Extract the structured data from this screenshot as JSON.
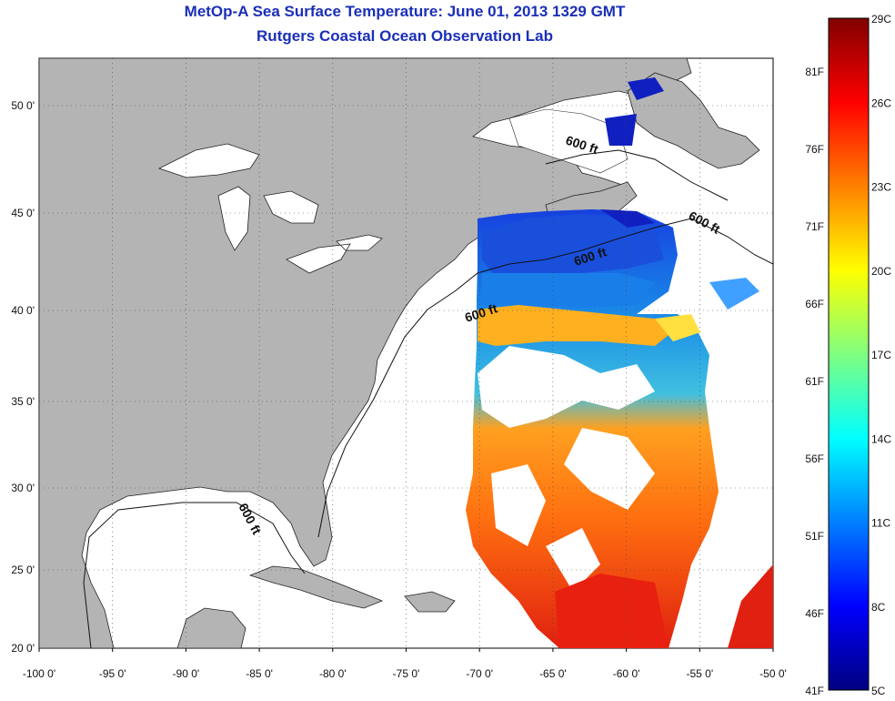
{
  "title": "MetOp-A Sea Surface Temperature:  June 01, 2013 1329 GMT",
  "subtitle": "Rutgers Coastal Ocean Observation Lab",
  "map": {
    "lon_range": [
      -100,
      -50
    ],
    "lat_range": [
      20,
      52.5
    ],
    "x_ticks": [
      "-100 0'",
      "-95 0'",
      "-90 0'",
      "-85 0'",
      "-80 0'",
      "-75 0'",
      "-70 0'",
      "-65 0'",
      "-60 0'",
      "-55 0'",
      "-50 0'"
    ],
    "y_ticks": [
      "20 0'",
      "25 0'",
      "30 0'",
      "35 0'",
      "40 0'",
      "45 0'",
      "50 0'"
    ],
    "land_color": "#b4b4b4",
    "contour_label": "600 ft",
    "contour_labels": [
      "600 ft",
      "600 ft",
      "600 ft",
      "600 ft",
      "600 ft"
    ]
  },
  "colorbar": {
    "celsius_ticks": [
      "29C",
      "26C",
      "23C",
      "20C",
      "17C",
      "14C",
      "11C",
      "8C",
      "5C"
    ],
    "fahrenheit_ticks": [
      "81F",
      "76F",
      "71F",
      "66F",
      "61F",
      "56F",
      "51F",
      "46F",
      "41F"
    ],
    "colors": [
      "#800000",
      "#ff0000",
      "#ff8000",
      "#ffff00",
      "#80ff80",
      "#00ffff",
      "#0080ff",
      "#0000ff",
      "#000080"
    ]
  }
}
